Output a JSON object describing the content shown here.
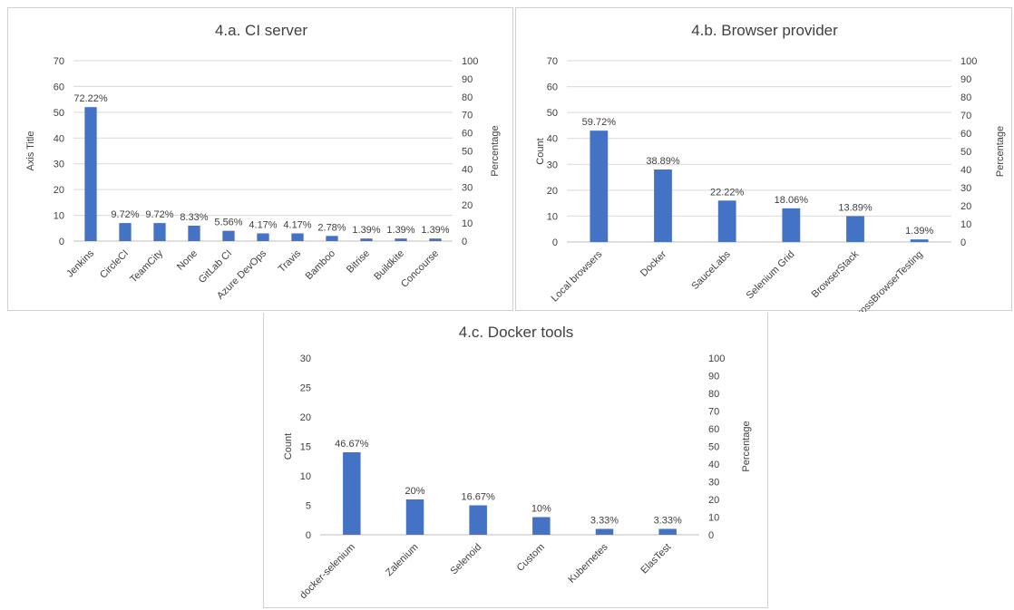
{
  "chart_data": [
    {
      "type": "bar",
      "title": "4.a. CI server",
      "ylabel": "Axis Title",
      "y2label": "Percentage",
      "ylim": [
        0,
        70
      ],
      "yticks": [
        0,
        10,
        20,
        30,
        40,
        50,
        60,
        70
      ],
      "y2lim": [
        0,
        100
      ],
      "y2ticks": [
        0,
        10,
        20,
        30,
        40,
        50,
        60,
        70,
        80,
        90,
        100
      ],
      "grid": true,
      "bar_color": "#4472C4",
      "categories": [
        "Jenkins",
        "CircleCI",
        "TeamCity",
        "None",
        "GitLab CI",
        "Azure DevOps",
        "Travis",
        "Bamboo",
        "Bitrise",
        "Buildkite",
        "Concourse"
      ],
      "values": [
        52,
        7,
        7,
        6,
        4,
        3,
        3,
        2,
        1,
        1,
        1
      ],
      "data_labels": [
        "72.22%",
        "9.72%",
        "9.72%",
        "8.33%",
        "5.56%",
        "4.17%",
        "4.17%",
        "2.78%",
        "1.39%",
        "1.39%",
        "1.39%"
      ]
    },
    {
      "type": "bar",
      "title": "4.b. Browser provider",
      "ylabel": "Count",
      "y2label": "Percentage",
      "ylim": [
        0,
        70
      ],
      "yticks": [
        0,
        10,
        20,
        30,
        40,
        50,
        60,
        70
      ],
      "y2lim": [
        0,
        100
      ],
      "y2ticks": [
        0,
        10,
        20,
        30,
        40,
        50,
        60,
        70,
        80,
        90,
        100
      ],
      "grid": true,
      "bar_color": "#4472C4",
      "categories": [
        "Local browsers",
        "Docker",
        "SauceLabs",
        "Selenium Grid",
        "BrowserStack",
        "CrossBrowserTesting"
      ],
      "values": [
        43,
        28,
        16,
        13,
        10,
        1
      ],
      "data_labels": [
        "59.72%",
        "38.89%",
        "22.22%",
        "18.06%",
        "13.89%",
        "1.39%"
      ]
    },
    {
      "type": "bar",
      "title": "4.c. Docker tools",
      "ylabel": "Count",
      "y2label": "Percentage",
      "ylim": [
        0,
        30
      ],
      "yticks": [
        0,
        5,
        10,
        15,
        20,
        25,
        30
      ],
      "y2lim": [
        0,
        100
      ],
      "y2ticks": [
        0,
        10,
        20,
        30,
        40,
        50,
        60,
        70,
        80,
        90,
        100
      ],
      "grid": false,
      "bar_color": "#4472C4",
      "categories": [
        "docker-selenium",
        "Zalenium",
        "Selenoid",
        "Custom",
        "Kubernetes",
        "ElasTest"
      ],
      "values": [
        14,
        6,
        5,
        3,
        1,
        1
      ],
      "data_labels": [
        "46.67%",
        "20%",
        "16.67%",
        "10%",
        "3.33%",
        "3.33%"
      ]
    }
  ]
}
